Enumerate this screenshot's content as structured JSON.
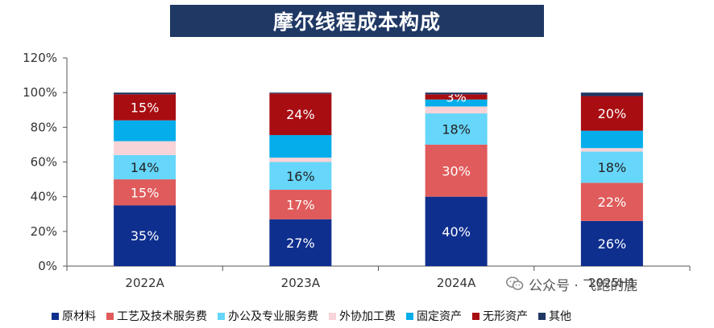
{
  "title": "摩尔线程成本构成",
  "chart_data": {
    "type": "bar",
    "stacked": true,
    "categories": [
      "2022A",
      "2023A",
      "2024A",
      "2025H1"
    ],
    "ylim": [
      0,
      120
    ],
    "yticks": [
      "0%",
      "20%",
      "40%",
      "60%",
      "80%",
      "100%",
      "120%"
    ],
    "ytick_values": [
      0,
      20,
      40,
      60,
      80,
      100,
      120
    ],
    "grid": false,
    "legend_position": "bottom",
    "series": [
      {
        "name": "原材料",
        "color": "#0f2f8f",
        "values": [
          35,
          27,
          40,
          26
        ],
        "labels": [
          "35%",
          "27%",
          "40%",
          "26%"
        ]
      },
      {
        "name": "工艺及技术服务费",
        "color": "#e05b5b",
        "values": [
          15,
          17,
          30,
          22
        ],
        "labels": [
          "15%",
          "17%",
          "30%",
          "22%"
        ]
      },
      {
        "name": "办公及专业服务费",
        "color": "#66d6fa",
        "values": [
          14,
          16,
          18,
          18
        ],
        "labels": [
          "14%",
          "16%",
          "18%",
          "18%"
        ]
      },
      {
        "name": "外协加工费",
        "color": "#f8d3d7",
        "values": [
          8,
          2.5,
          4,
          2
        ],
        "labels": [
          "",
          "",
          "",
          ""
        ]
      },
      {
        "name": "固定资产",
        "color": "#05aeea",
        "values": [
          12,
          13,
          4,
          10
        ],
        "labels": [
          "",
          "",
          "",
          ""
        ]
      },
      {
        "name": "无形资产",
        "color": "#a80d12",
        "values": [
          15,
          24,
          3,
          20
        ],
        "labels": [
          "15%",
          "24%",
          "3%",
          "20%"
        ]
      },
      {
        "name": "其他",
        "color": "#1f3864",
        "values": [
          1,
          0.5,
          1,
          2
        ],
        "labels": [
          "",
          "",
          "",
          ""
        ]
      }
    ]
  },
  "watermark": {
    "text": "公众号 · 飞跑的鹿"
  }
}
